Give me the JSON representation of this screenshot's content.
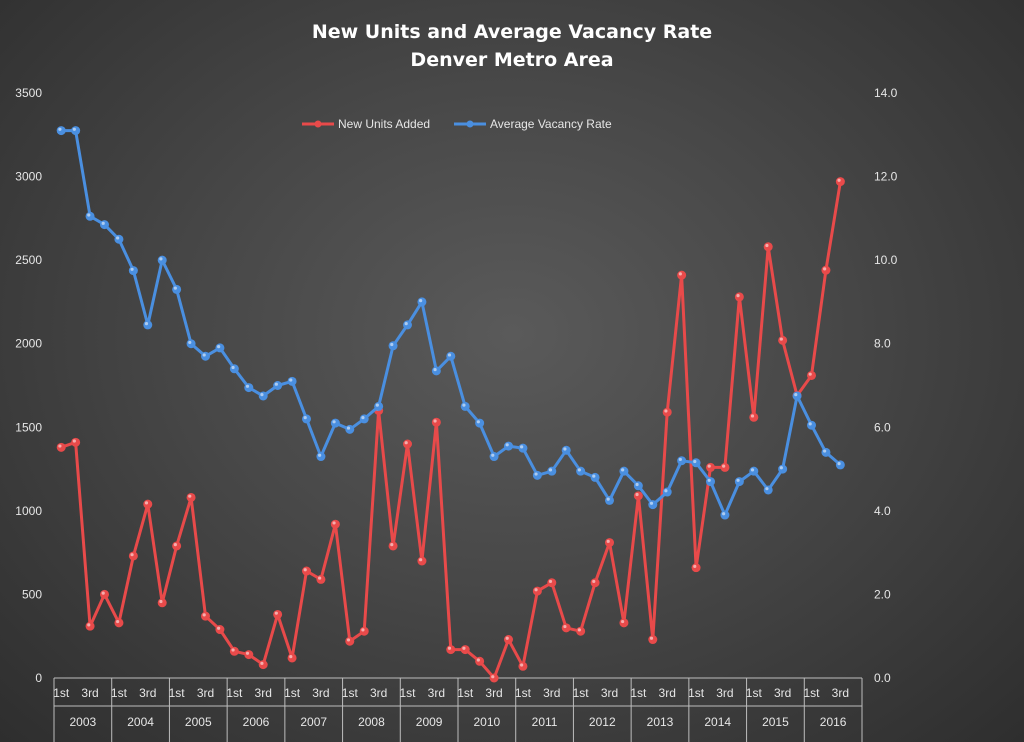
{
  "chart_data": {
    "type": "line",
    "title": "New Units and Average Vacancy Rate",
    "subtitle": "Denver Metro Area",
    "years": [
      "2003",
      "2004",
      "2005",
      "2006",
      "2007",
      "2008",
      "2009",
      "2010",
      "2011",
      "2012",
      "2013",
      "2014",
      "2015",
      "2016"
    ],
    "quarter_labels": [
      "1st",
      "3rd"
    ],
    "y_left": {
      "min": 0,
      "max": 3500,
      "step": 500,
      "ticks": [
        "0",
        "500",
        "1000",
        "1500",
        "2000",
        "2500",
        "3000",
        "3500"
      ]
    },
    "y_right": {
      "min": 0,
      "max": 14,
      "step": 2,
      "ticks": [
        "0.0",
        "2.0",
        "4.0",
        "6.0",
        "8.0",
        "10.0",
        "12.0",
        "14.0"
      ]
    },
    "grid": false,
    "legend_position": "top-center",
    "series": [
      {
        "name": "New Units Added",
        "axis": "left",
        "color": "#e84a4a",
        "values": [
          1380,
          1410,
          310,
          500,
          330,
          730,
          1040,
          450,
          790,
          1080,
          370,
          290,
          160,
          140,
          80,
          380,
          120,
          640,
          590,
          920,
          220,
          280,
          1600,
          790,
          1400,
          700,
          1530,
          170,
          170,
          100,
          0,
          230,
          70,
          520,
          570,
          300,
          280,
          570,
          810,
          330,
          1090,
          230,
          1590,
          2410,
          660,
          1260,
          1260,
          2280,
          1560,
          2580,
          2020,
          1690,
          1810,
          2440,
          2970
        ]
      },
      {
        "name": "Average Vacancy Rate",
        "axis": "right",
        "color": "#4a8fe0",
        "values": [
          13.1,
          13.1,
          11.05,
          10.85,
          10.5,
          9.75,
          8.45,
          10.0,
          9.3,
          8.0,
          7.7,
          7.9,
          7.4,
          6.95,
          6.75,
          7.0,
          7.1,
          6.2,
          5.3,
          6.1,
          5.95,
          6.2,
          6.5,
          7.95,
          8.45,
          9.0,
          7.35,
          7.7,
          6.5,
          6.1,
          5.3,
          5.55,
          5.5,
          4.85,
          4.95,
          5.45,
          4.95,
          4.8,
          4.25,
          4.95,
          4.6,
          4.15,
          4.45,
          5.2,
          5.15,
          4.7,
          3.9,
          4.7,
          4.95,
          4.5,
          5.0,
          6.75,
          6.05,
          5.4,
          5.1
        ]
      }
    ]
  }
}
